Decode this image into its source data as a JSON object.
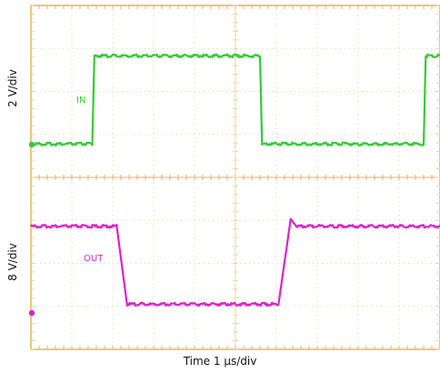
{
  "chart_data": {
    "type": "line",
    "x_axis_label": "Time 1 µs/div",
    "x_range_div": [
      0,
      10
    ],
    "grid": true,
    "colors": {
      "grid": "#e8d6a6",
      "frame": "#e6b454",
      "in_trace": "#33cc33",
      "out_trace": "#dd22cc"
    },
    "series": [
      {
        "name": "IN",
        "y_axis_label": "2 V/div",
        "color": "#33cc33",
        "x": [
          0,
          1.5,
          1.55,
          5.6,
          5.65,
          9.6,
          9.65,
          10
        ],
        "y": [
          0,
          0,
          4.1,
          4.1,
          0,
          0,
          4.1,
          4.1
        ],
        "unit_y": "V"
      },
      {
        "name": "OUT",
        "y_axis_label": "8 V/div",
        "color": "#dd22cc",
        "x": [
          0,
          2.1,
          2.35,
          6.05,
          6.35,
          6.5,
          10
        ],
        "y": [
          16,
          16,
          1.5,
          1.5,
          17.5,
          16,
          16
        ],
        "unit_y": "V"
      }
    ]
  }
}
